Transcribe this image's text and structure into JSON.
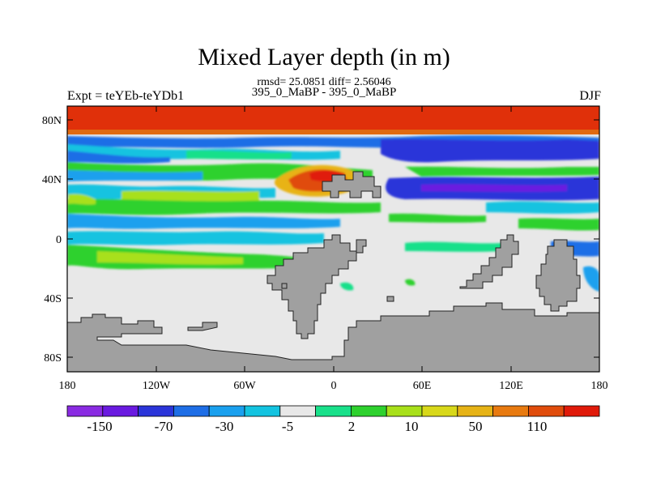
{
  "title": "Mixed Layer depth (in m)",
  "subtitle_stats": "rmsd= 25.0851 diff= 2.56046",
  "subtitle_runs": "395_0_MaBP - 395_0_MaBP",
  "left_label": "Expt = teYEb-teYDb1",
  "right_label": "DJF",
  "lat_ticks": [
    "80N",
    "40N",
    "0",
    "40S",
    "80S"
  ],
  "lon_ticks": [
    "180",
    "120W",
    "60W",
    "0",
    "60E",
    "120E",
    "180"
  ],
  "colorbar": {
    "labels": [
      "-150",
      "-70",
      "-30",
      "-5",
      "2",
      "10",
      "50",
      "110"
    ],
    "colors": [
      "#8a2be2",
      "#6a1ae0",
      "#2b35d9",
      "#1e6ee6",
      "#1aa0ee",
      "#13c3e0",
      "#e8e8e8",
      "#19e08a",
      "#2ed12e",
      "#a8e01a",
      "#d8d81a",
      "#e6b316",
      "#e87a10",
      "#e04c0c",
      "#e01a0a"
    ]
  },
  "colors": {
    "land": "#a0a0a0",
    "ocean_background": "#e8e8e8"
  }
}
